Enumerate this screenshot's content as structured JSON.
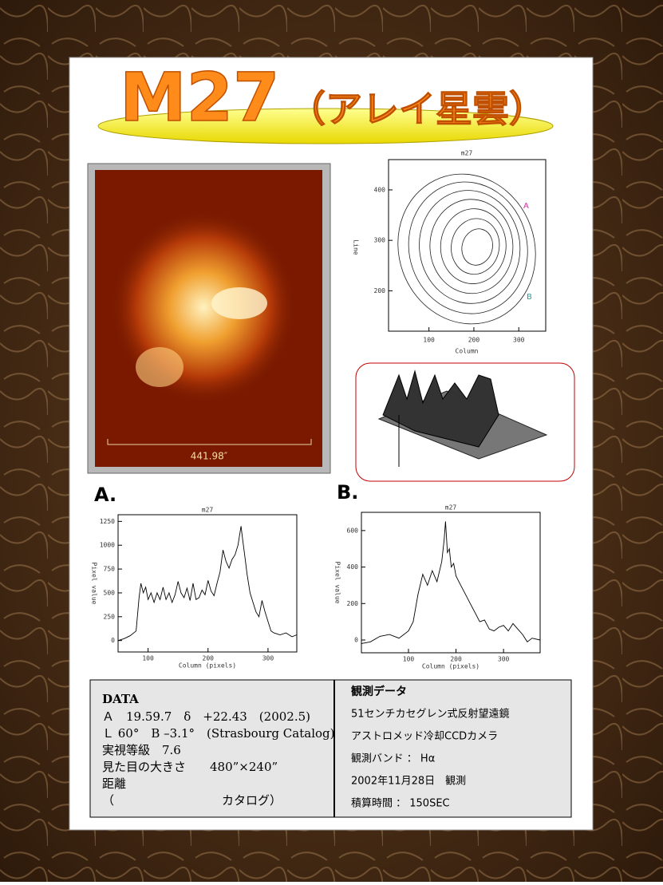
{
  "header": {
    "main": "M27",
    "sub": "（アレイ星雲）"
  },
  "image": {
    "scale_label": "441.98″"
  },
  "contour": {
    "title": "m27",
    "ylabel": "Line",
    "xlabel": "Column",
    "xlim": [
      10,
      360
    ],
    "ylim": [
      120,
      460
    ],
    "xticks": [
      100,
      200,
      300
    ],
    "yticks": [
      200,
      300,
      400
    ],
    "marker_a": "A",
    "marker_b": "B"
  },
  "chart_data": [
    {
      "type": "line",
      "panel_label": "A.",
      "title": "m27",
      "x_label": "Column (pixels)",
      "y_label": "Pixel value",
      "x": [
        50,
        60,
        70,
        80,
        85,
        88,
        92,
        96,
        100,
        105,
        110,
        115,
        120,
        125,
        130,
        135,
        140,
        145,
        150,
        155,
        160,
        165,
        170,
        175,
        180,
        185,
        190,
        195,
        200,
        205,
        210,
        215,
        220,
        225,
        230,
        235,
        240,
        245,
        250,
        255,
        258,
        262,
        265,
        270,
        275,
        280,
        285,
        290,
        295,
        300,
        305,
        310,
        320,
        330,
        340,
        348
      ],
      "values": [
        0,
        20,
        50,
        100,
        450,
        600,
        500,
        560,
        430,
        500,
        400,
        500,
        430,
        560,
        430,
        500,
        400,
        480,
        620,
        500,
        450,
        550,
        420,
        600,
        430,
        450,
        530,
        480,
        630,
        520,
        470,
        600,
        720,
        950,
        830,
        760,
        850,
        900,
        1000,
        1200,
        1050,
        850,
        700,
        500,
        400,
        300,
        250,
        420,
        300,
        200,
        100,
        80,
        60,
        80,
        40,
        60
      ],
      "xlim": [
        50,
        348
      ],
      "ylim": [
        -120,
        1320
      ],
      "xticks": [
        100,
        200,
        300
      ],
      "yticks": [
        0,
        250,
        500,
        750,
        1000,
        1250
      ]
    },
    {
      "type": "line",
      "panel_label": "B.",
      "title": "m27",
      "x_label": "Column (pixels)",
      "y_label": "Pixel value",
      "x": [
        0,
        20,
        40,
        60,
        80,
        100,
        110,
        120,
        130,
        140,
        150,
        160,
        170,
        175,
        178,
        182,
        186,
        190,
        195,
        200,
        210,
        220,
        230,
        240,
        250,
        260,
        270,
        280,
        290,
        300,
        310,
        320,
        330,
        340,
        350,
        360,
        377
      ],
      "values": [
        -20,
        -10,
        20,
        30,
        10,
        50,
        100,
        250,
        360,
        300,
        380,
        320,
        430,
        550,
        650,
        480,
        500,
        400,
        420,
        350,
        300,
        250,
        200,
        150,
        100,
        110,
        60,
        50,
        70,
        80,
        50,
        90,
        60,
        30,
        -10,
        10,
        0
      ],
      "xlim": [
        1,
        377
      ],
      "ylim": [
        -70,
        700
      ],
      "xticks": [
        100,
        200,
        300
      ],
      "yticks": [
        0,
        200,
        400,
        600
      ]
    }
  ],
  "data_box": {
    "heading": "DATA",
    "lines": [
      "Ａ　19.59.7　δ　+22.43　(2002.5)",
      "Ｌ 60°　B –3.1°　(Strasbourg Catalog)",
      "実視等級　7.6",
      "見た目の大きさ　　480”×240”",
      "距離",
      "（　　　　　　　　　カタログ）"
    ]
  },
  "observation": {
    "heading": "観測データ",
    "lines": [
      "51センチカセグレン式反射望遠鏡",
      "アストロメッド冷却CCDカメラ",
      "観測バンド ： Hα",
      "2002年11月28日　観測",
      "積算時間 ： 150SEC"
    ]
  }
}
